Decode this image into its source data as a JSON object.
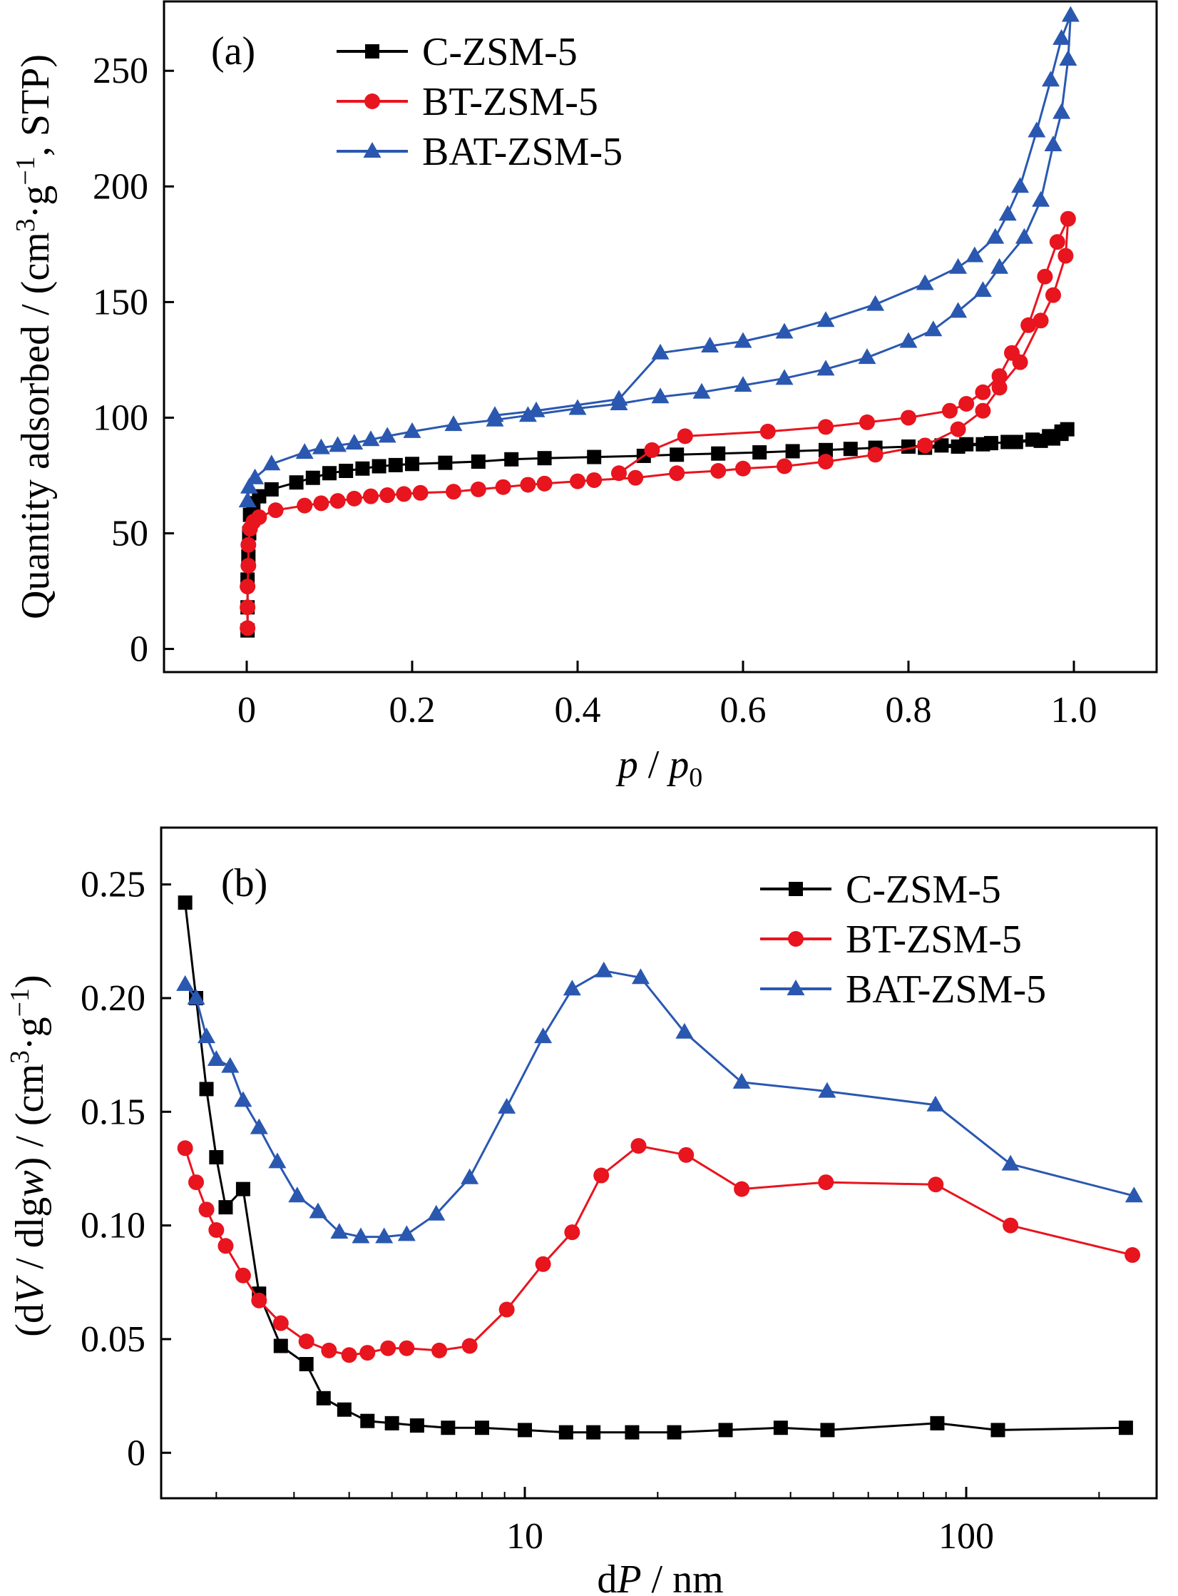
{
  "chart_data": [
    {
      "panel_label": "(a)",
      "type": "line",
      "xlabel": "p / p0",
      "xlabel_parts": {
        "p": "p",
        "slash": " / ",
        "p0_base": "p",
        "p0_sub": "0"
      },
      "ylabel": "Quantity adsorbed / (cm³·g⁻¹, STP)",
      "ylabel_parts": {
        "before": "Quantity adsorbed / (cm",
        "sup1": "3",
        "mid": "·g",
        "sup2": "−1",
        "after": ", STP)"
      },
      "xlim": [
        -0.1,
        1.1
      ],
      "ylim": [
        -10,
        280
      ],
      "xticks": [
        0,
        0.2,
        0.4,
        0.6,
        0.8,
        1.0
      ],
      "xtick_labels": [
        "0",
        "0.2",
        "0.4",
        "0.6",
        "0.8",
        "1.0"
      ],
      "yticks": [
        0,
        50,
        100,
        150,
        200,
        250
      ],
      "ytick_labels": [
        "0",
        "50",
        "100",
        "150",
        "200",
        "250"
      ],
      "legend_position": "top-left",
      "series": [
        {
          "name": "C-ZSM-5",
          "color": "#000000",
          "marker": "square",
          "points": [
            [
              0.001,
              8
            ],
            [
              0.001,
              18
            ],
            [
              0.001,
              30
            ],
            [
              0.002,
              40
            ],
            [
              0.003,
              50
            ],
            [
              0.004,
              58
            ],
            [
              0.008,
              63
            ],
            [
              0.015,
              66
            ],
            [
              0.03,
              69
            ],
            [
              0.06,
              72
            ],
            [
              0.08,
              74
            ],
            [
              0.1,
              76
            ],
            [
              0.12,
              77
            ],
            [
              0.14,
              78
            ],
            [
              0.16,
              79
            ],
            [
              0.18,
              79.5
            ],
            [
              0.2,
              80
            ],
            [
              0.24,
              80.5
            ],
            [
              0.28,
              81
            ],
            [
              0.32,
              82
            ],
            [
              0.36,
              82.5
            ],
            [
              0.42,
              83
            ],
            [
              0.48,
              83.5
            ],
            [
              0.52,
              84
            ],
            [
              0.57,
              84.5
            ],
            [
              0.62,
              85
            ],
            [
              0.66,
              85.5
            ],
            [
              0.7,
              86
            ],
            [
              0.73,
              86.5
            ],
            [
              0.76,
              87
            ],
            [
              0.8,
              87.5
            ],
            [
              0.84,
              88
            ],
            [
              0.87,
              88.5
            ],
            [
              0.9,
              89
            ],
            [
              0.93,
              89.5
            ],
            [
              0.96,
              90
            ],
            [
              0.975,
              91
            ],
            [
              0.985,
              93
            ],
            [
              0.992,
              95
            ],
            [
              0.985,
              94
            ],
            [
              0.97,
              92
            ],
            [
              0.95,
              90.5
            ],
            [
              0.92,
              89.5
            ],
            [
              0.89,
              88.5
            ],
            [
              0.86,
              87.5
            ],
            [
              0.82,
              87
            ]
          ]
        },
        {
          "name": "BT-ZSM-5",
          "color": "#e8141e",
          "marker": "circle",
          "points": [
            [
              0.001,
              9
            ],
            [
              0.001,
              18
            ],
            [
              0.001,
              27
            ],
            [
              0.002,
              36
            ],
            [
              0.002,
              45
            ],
            [
              0.004,
              52
            ],
            [
              0.008,
              55
            ],
            [
              0.015,
              57
            ],
            [
              0.035,
              60
            ],
            [
              0.07,
              62
            ],
            [
              0.09,
              63
            ],
            [
              0.11,
              64
            ],
            [
              0.13,
              65
            ],
            [
              0.15,
              66
            ],
            [
              0.17,
              66.5
            ],
            [
              0.19,
              67
            ],
            [
              0.21,
              67.5
            ],
            [
              0.25,
              68
            ],
            [
              0.28,
              69
            ],
            [
              0.31,
              70
            ],
            [
              0.34,
              71
            ],
            [
              0.36,
              71.5
            ],
            [
              0.4,
              72.5
            ],
            [
              0.42,
              73
            ],
            [
              0.47,
              74
            ],
            [
              0.52,
              76
            ],
            [
              0.57,
              77
            ],
            [
              0.6,
              78
            ],
            [
              0.65,
              79
            ],
            [
              0.7,
              81
            ],
            [
              0.76,
              84
            ],
            [
              0.82,
              88
            ],
            [
              0.86,
              95
            ],
            [
              0.89,
              103
            ],
            [
              0.91,
              113
            ],
            [
              0.935,
              124
            ],
            [
              0.96,
              142
            ],
            [
              0.975,
              153
            ],
            [
              0.99,
              170
            ],
            [
              0.993,
              186
            ],
            [
              0.98,
              176
            ],
            [
              0.965,
              161
            ],
            [
              0.945,
              140
            ],
            [
              0.925,
              128
            ],
            [
              0.91,
              118
            ],
            [
              0.89,
              111
            ],
            [
              0.87,
              106
            ],
            [
              0.85,
              103
            ],
            [
              0.8,
              100
            ],
            [
              0.75,
              98
            ],
            [
              0.7,
              96
            ],
            [
              0.63,
              94
            ],
            [
              0.53,
              92
            ],
            [
              0.49,
              86
            ],
            [
              0.45,
              76
            ]
          ]
        },
        {
          "name": "BAT-ZSM-5",
          "color": "#2a58b0",
          "marker": "triangle",
          "points": [
            [
              0.001,
              64
            ],
            [
              0.003,
              70
            ],
            [
              0.01,
              74
            ],
            [
              0.03,
              80
            ],
            [
              0.07,
              85
            ],
            [
              0.09,
              87
            ],
            [
              0.11,
              88
            ],
            [
              0.13,
              89
            ],
            [
              0.15,
              90.5
            ],
            [
              0.17,
              92
            ],
            [
              0.2,
              94
            ],
            [
              0.25,
              97
            ],
            [
              0.3,
              99
            ],
            [
              0.34,
              101
            ],
            [
              0.4,
              104
            ],
            [
              0.45,
              106
            ],
            [
              0.5,
              109
            ],
            [
              0.55,
              111
            ],
            [
              0.6,
              114
            ],
            [
              0.65,
              117
            ],
            [
              0.7,
              121
            ],
            [
              0.75,
              126
            ],
            [
              0.8,
              133
            ],
            [
              0.83,
              138
            ],
            [
              0.86,
              146
            ],
            [
              0.89,
              155
            ],
            [
              0.91,
              165
            ],
            [
              0.94,
              178
            ],
            [
              0.96,
              194
            ],
            [
              0.975,
              218
            ],
            [
              0.985,
              232
            ],
            [
              0.993,
              255
            ],
            [
              0.996,
              274
            ],
            [
              0.985,
              264
            ],
            [
              0.972,
              246
            ],
            [
              0.955,
              224
            ],
            [
              0.935,
              200
            ],
            [
              0.92,
              188
            ],
            [
              0.905,
              178
            ],
            [
              0.88,
              170
            ],
            [
              0.86,
              165
            ],
            [
              0.82,
              158
            ],
            [
              0.76,
              149
            ],
            [
              0.7,
              142
            ],
            [
              0.65,
              137
            ],
            [
              0.6,
              133
            ],
            [
              0.56,
              131
            ],
            [
              0.5,
              128
            ],
            [
              0.45,
              108
            ],
            [
              0.35,
              103
            ],
            [
              0.3,
              101
            ]
          ]
        }
      ]
    },
    {
      "panel_label": "(b)",
      "type": "line",
      "xscale": "log",
      "xlabel": "dP / nm",
      "xlabel_parts": {
        "d": "d",
        "P": "P",
        "rest": " / nm"
      },
      "ylabel": "(dV / dlgw) / (cm³·g⁻¹)",
      "ylabel_parts": {
        "a": "(d",
        "V": "V",
        "b": " / dlg",
        "w": "w",
        "c": ") / (cm",
        "sup1": "3",
        "d": "·g",
        "sup2": "−1",
        "e": ")"
      },
      "xlim": [
        1.5,
        270
      ],
      "ylim": [
        -0.02,
        0.275
      ],
      "xticks": [
        10,
        100
      ],
      "xtick_labels": [
        "10",
        "100"
      ],
      "yticks": [
        0,
        0.05,
        0.1,
        0.15,
        0.2,
        0.25
      ],
      "ytick_labels": [
        "0",
        "0.05",
        "0.10",
        "0.15",
        "0.20",
        "0.25"
      ],
      "legend_position": "top-right",
      "series": [
        {
          "name": "C-ZSM-5",
          "color": "#000000",
          "marker": "square",
          "points": [
            [
              1.7,
              0.242
            ],
            [
              1.8,
              0.2
            ],
            [
              1.9,
              0.16
            ],
            [
              2.0,
              0.13
            ],
            [
              2.1,
              0.108
            ],
            [
              2.3,
              0.116
            ],
            [
              2.5,
              0.07
            ],
            [
              2.8,
              0.047
            ],
            [
              3.2,
              0.039
            ],
            [
              3.5,
              0.024
            ],
            [
              3.9,
              0.019
            ],
            [
              4.4,
              0.014
            ],
            [
              5.0,
              0.013
            ],
            [
              5.7,
              0.012
            ],
            [
              6.7,
              0.011
            ],
            [
              8.0,
              0.011
            ],
            [
              10.0,
              0.01
            ],
            [
              12.4,
              0.009
            ],
            [
              14.3,
              0.009
            ],
            [
              17.5,
              0.009
            ],
            [
              21.8,
              0.009
            ],
            [
              28.5,
              0.01
            ],
            [
              38.0,
              0.011
            ],
            [
              48.5,
              0.01
            ],
            [
              86,
              0.013
            ],
            [
              118,
              0.01
            ],
            [
              230,
              0.011
            ]
          ]
        },
        {
          "name": "BT-ZSM-5",
          "color": "#e8141e",
          "marker": "circle",
          "points": [
            [
              1.7,
              0.134
            ],
            [
              1.8,
              0.119
            ],
            [
              1.9,
              0.107
            ],
            [
              2.0,
              0.098
            ],
            [
              2.1,
              0.091
            ],
            [
              2.3,
              0.078
            ],
            [
              2.5,
              0.067
            ],
            [
              2.8,
              0.057
            ],
            [
              3.2,
              0.049
            ],
            [
              3.6,
              0.045
            ],
            [
              4.0,
              0.043
            ],
            [
              4.4,
              0.044
            ],
            [
              4.9,
              0.046
            ],
            [
              5.4,
              0.046
            ],
            [
              6.4,
              0.045
            ],
            [
              7.5,
              0.047
            ],
            [
              9.1,
              0.063
            ],
            [
              11.0,
              0.083
            ],
            [
              12.8,
              0.097
            ],
            [
              14.9,
              0.122
            ],
            [
              18.1,
              0.135
            ],
            [
              23.2,
              0.131
            ],
            [
              31.0,
              0.116
            ],
            [
              48.1,
              0.119
            ],
            [
              85.3,
              0.118
            ],
            [
              126,
              0.1
            ],
            [
              238,
              0.087
            ]
          ]
        },
        {
          "name": "BAT-ZSM-5",
          "color": "#2a58b0",
          "marker": "triangle",
          "points": [
            [
              1.7,
              0.206
            ],
            [
              1.8,
              0.2
            ],
            [
              1.9,
              0.183
            ],
            [
              2.0,
              0.173
            ],
            [
              2.15,
              0.17
            ],
            [
              2.3,
              0.155
            ],
            [
              2.5,
              0.143
            ],
            [
              2.75,
              0.128
            ],
            [
              3.05,
              0.113
            ],
            [
              3.4,
              0.106
            ],
            [
              3.8,
              0.097
            ],
            [
              4.25,
              0.095
            ],
            [
              4.8,
              0.095
            ],
            [
              5.4,
              0.096
            ],
            [
              6.3,
              0.105
            ],
            [
              7.5,
              0.121
            ],
            [
              9.1,
              0.152
            ],
            [
              11.0,
              0.183
            ],
            [
              12.8,
              0.204
            ],
            [
              15.1,
              0.212
            ],
            [
              18.3,
              0.209
            ],
            [
              23.0,
              0.185
            ],
            [
              31.0,
              0.163
            ],
            [
              48.4,
              0.159
            ],
            [
              85.2,
              0.153
            ],
            [
              126,
              0.127
            ],
            [
              240,
              0.113
            ]
          ]
        }
      ]
    }
  ]
}
